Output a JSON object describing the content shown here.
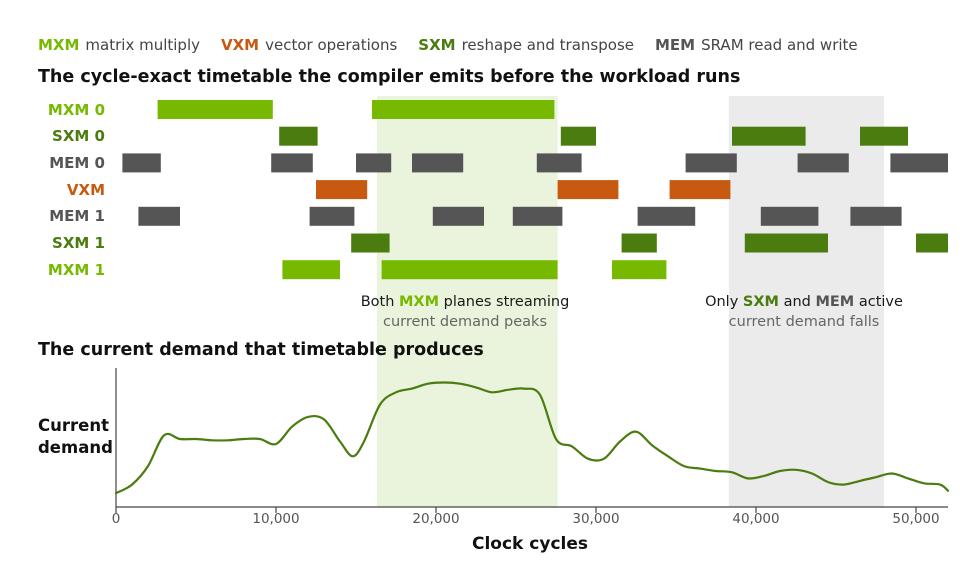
{
  "legend": [
    {
      "key": "MXM",
      "desc": "matrix multiply",
      "color": "#76B900"
    },
    {
      "key": "VXM",
      "desc": "vector operations",
      "color": "#C75A10"
    },
    {
      "key": "SXM",
      "desc": "reshape and transpose",
      "color": "#4A7C0F"
    },
    {
      "key": "MEM",
      "desc": "SRAM read and write",
      "color": "#555555"
    }
  ],
  "title": "The cycle-exact timetable the compiler emits before the workload runs",
  "subtitle": "The current demand that timetable produces",
  "annotations": [
    {
      "pre": "Both ",
      "hl": "MXM",
      "hl_color": "#76B900",
      "post": " planes streaming",
      "sub": "current demand peaks"
    },
    {
      "pre": "Only ",
      "hl": "SXM",
      "hl_color": "#4A7C0F",
      "mid": " and ",
      "hl2": "MEM",
      "hl2_color": "#555555",
      "post": " active",
      "sub": "current demand falls"
    }
  ],
  "chart_data": [
    {
      "type": "gantt",
      "title": "The cycle-exact timetable the compiler emits before the workload runs",
      "x_unit": "Clock cycles",
      "xlim": [
        0,
        52000
      ],
      "highlight_regions": [
        {
          "start": 16300,
          "end": 27600,
          "color": "#EAF4DC"
        },
        {
          "start": 38300,
          "end": 48000,
          "color": "#EBEBEB"
        }
      ],
      "lanes": [
        {
          "name": "MXM 0",
          "color": "#76B900",
          "label_color": "#76B900",
          "tasks": [
            [
              2600,
              9800
            ],
            [
              16000,
              27400
            ]
          ]
        },
        {
          "name": "SXM 0",
          "color": "#4A7C0F",
          "label_color": "#4A7C0F",
          "tasks": [
            [
              10200,
              12600
            ],
            [
              27800,
              30000
            ],
            [
              38500,
              43100
            ],
            [
              46500,
              49500
            ]
          ]
        },
        {
          "name": "MEM 0",
          "color": "#555555",
          "label_color": "#555555",
          "tasks": [
            [
              400,
              2800
            ],
            [
              9700,
              12300
            ],
            [
              15000,
              17200
            ],
            [
              18500,
              21700
            ],
            [
              26300,
              29100
            ],
            [
              35600,
              38800
            ],
            [
              42600,
              45800
            ],
            [
              48400,
              52000
            ]
          ]
        },
        {
          "name": "VXM",
          "color": "#C75A10",
          "label_color": "#C75A10",
          "tasks": [
            [
              12500,
              15700
            ],
            [
              27600,
              31400
            ],
            [
              34600,
              38400
            ]
          ]
        },
        {
          "name": "MEM 1",
          "color": "#555555",
          "label_color": "#555555",
          "tasks": [
            [
              1400,
              4000
            ],
            [
              12100,
              14900
            ],
            [
              19800,
              23000
            ],
            [
              24800,
              27900
            ],
            [
              32600,
              36200
            ],
            [
              40300,
              43900
            ],
            [
              45900,
              49100
            ]
          ]
        },
        {
          "name": "SXM 1",
          "color": "#4A7C0F",
          "label_color": "#4A7C0F",
          "tasks": [
            [
              14700,
              17100
            ],
            [
              31600,
              33800
            ],
            [
              39300,
              44500
            ],
            [
              50000,
              52000
            ]
          ]
        },
        {
          "name": "MXM 1",
          "color": "#76B900",
          "label_color": "#76B900",
          "tasks": [
            [
              10400,
              14000
            ],
            [
              16600,
              27600
            ],
            [
              31000,
              34400
            ]
          ]
        }
      ]
    },
    {
      "type": "line",
      "title": "The current demand that timetable produces",
      "xlabel": "Clock cycles",
      "ylabel": "Current demand",
      "xlim": [
        0,
        52000
      ],
      "ylim": [
        0,
        1
      ],
      "xticks": [
        0,
        10000,
        20000,
        30000,
        40000,
        50000
      ],
      "xtick_labels": [
        "0",
        "10,000",
        "20,000",
        "30,000",
        "40,000",
        "50,000"
      ],
      "grid": false,
      "color": "#4A7C0F",
      "x": [
        0,
        1000,
        2000,
        3000,
        4000,
        5000,
        6000,
        7000,
        8000,
        9000,
        10000,
        11000,
        12000,
        13000,
        14000,
        14800,
        15500,
        16500,
        17500,
        18500,
        19500,
        20500,
        21500,
        22500,
        23500,
        24500,
        25500,
        26500,
        27500,
        28500,
        29500,
        30500,
        31500,
        32500,
        33500,
        34500,
        35500,
        36500,
        37500,
        38500,
        39500,
        40500,
        41500,
        42500,
        43500,
        44500,
        45500,
        46500,
        47500,
        48500,
        49500,
        50500,
        51500,
        52000
      ],
      "y": [
        0.08,
        0.15,
        0.3,
        0.55,
        0.52,
        0.52,
        0.51,
        0.51,
        0.52,
        0.52,
        0.48,
        0.62,
        0.7,
        0.68,
        0.5,
        0.38,
        0.5,
        0.8,
        0.9,
        0.93,
        0.97,
        0.98,
        0.97,
        0.94,
        0.9,
        0.92,
        0.93,
        0.88,
        0.52,
        0.46,
        0.36,
        0.36,
        0.5,
        0.58,
        0.47,
        0.38,
        0.3,
        0.28,
        0.26,
        0.25,
        0.2,
        0.22,
        0.26,
        0.27,
        0.24,
        0.17,
        0.15,
        0.18,
        0.21,
        0.24,
        0.2,
        0.16,
        0.15,
        0.1
      ]
    }
  ]
}
